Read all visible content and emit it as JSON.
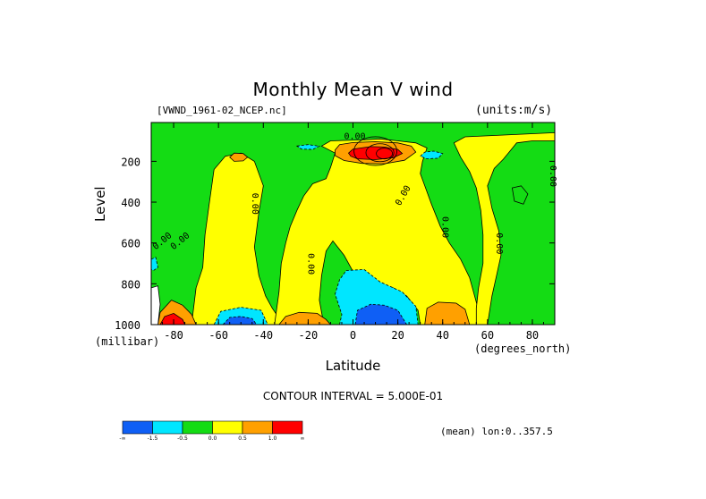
{
  "chart_data": {
    "type": "heatmap",
    "title": "Monthly Mean V wind",
    "dataset_label": "[VWND_1961-02_NCEP.nc]",
    "units_label": "(units:m/s)",
    "ylabel": "Level",
    "y_unit_label": "(millibar)",
    "xlabel": "Latitude",
    "x_unit_label": "(degrees_north)",
    "contour_interval_label": "CONTOUR INTERVAL = 5.000E-01",
    "mean_label": "(mean) lon:0..357.5",
    "xlim": [
      -90,
      90
    ],
    "ylim": [
      1000,
      10
    ],
    "x_ticks": [
      -80,
      -60,
      -40,
      -20,
      0,
      20,
      40,
      60,
      80
    ],
    "x_tick_labels": [
      "-80",
      "-60",
      "-40",
      "-20",
      "0",
      "20",
      "40",
      "60",
      "80"
    ],
    "y_ticks": [
      200,
      400,
      600,
      800,
      1000
    ],
    "y_tick_labels": [
      "200",
      "400",
      "600",
      "800",
      "1000"
    ],
    "colorbar": {
      "colors": [
        "#0f5ff5",
        "#00e6ff",
        "#14dc14",
        "#ffff00",
        "#ffa000",
        "#ff0000"
      ],
      "labels": [
        "-∞",
        "-1.5",
        "-0.5",
        "0.0",
        "0.5",
        "1.0",
        "∞"
      ]
    },
    "contour_labels": [
      "0.00",
      "0.00",
      "0.00",
      "0.00",
      "0.00",
      "0.00",
      "0.00",
      "0.00",
      "0.00"
    ],
    "regions": [
      {
        "name": "background",
        "level": 0.0,
        "polygon": [
          [
            -90,
            1000
          ],
          [
            90,
            1000
          ],
          [
            90,
            10
          ],
          [
            -90,
            10
          ]
        ]
      },
      {
        "name": "sh-mid-yellow",
        "level": 0.25,
        "polygon": [
          [
            -72,
            1000
          ],
          [
            -70,
            820
          ],
          [
            -67,
            720
          ],
          [
            -66,
            560
          ],
          [
            -64,
            400
          ],
          [
            -62,
            240
          ],
          [
            -57,
            175
          ],
          [
            -50,
            160
          ],
          [
            -44,
            200
          ],
          [
            -40,
            320
          ],
          [
            -42,
            450
          ],
          [
            -44,
            620
          ],
          [
            -42,
            760
          ],
          [
            -39,
            860
          ],
          [
            -36,
            920
          ],
          [
            -31,
            1000
          ]
        ]
      },
      {
        "name": "sh-mid-orange",
        "level": 0.75,
        "polygon": [
          [
            -55,
            180
          ],
          [
            -53,
            160
          ],
          [
            -49,
            162
          ],
          [
            -47,
            180
          ],
          [
            -49,
            198
          ],
          [
            -53,
            200
          ]
        ]
      },
      {
        "name": "sh-polar-orange",
        "level": 0.75,
        "polygon": [
          [
            -87,
            1000
          ],
          [
            -86,
            940
          ],
          [
            -81,
            880
          ],
          [
            -76,
            905
          ],
          [
            -72,
            950
          ],
          [
            -70,
            1000
          ]
        ]
      },
      {
        "name": "sh-polar-red",
        "level": 1.25,
        "polygon": [
          [
            -86,
            1000
          ],
          [
            -84,
            960
          ],
          [
            -80,
            945
          ],
          [
            -76,
            975
          ],
          [
            -75,
            1000
          ]
        ]
      },
      {
        "name": "sh-polar-white",
        "level": null,
        "polygon": [
          [
            -90,
            1000
          ],
          [
            -90,
            820
          ],
          [
            -87,
            810
          ],
          [
            -86,
            900
          ],
          [
            -87,
            1000
          ]
        ]
      },
      {
        "name": "sh-polar-cyan",
        "level": -1.0,
        "polygon": [
          [
            -90,
            680
          ],
          [
            -88,
            670
          ],
          [
            -87,
            720
          ],
          [
            -89,
            735
          ],
          [
            -90,
            730
          ]
        ]
      },
      {
        "name": "sh-upper-cyan",
        "level": -1.0,
        "polygon": [
          [
            -25,
            125
          ],
          [
            -20,
            118
          ],
          [
            -15,
            126
          ],
          [
            -18,
            142
          ],
          [
            -23,
            140
          ]
        ]
      },
      {
        "name": "subtropical-yellow",
        "level": 0.25,
        "polygon": [
          [
            -35,
            1000
          ],
          [
            -33,
            840
          ],
          [
            -32,
            700
          ],
          [
            -30,
            600
          ],
          [
            -28,
            520
          ],
          [
            -25,
            440
          ],
          [
            -22,
            370
          ],
          [
            -18,
            310
          ],
          [
            -12,
            285
          ],
          [
            -10,
            230
          ],
          [
            -8,
            160
          ],
          [
            -14,
            125
          ],
          [
            -10,
            100
          ],
          [
            5,
            95
          ],
          [
            12,
            90
          ],
          [
            20,
            100
          ],
          [
            28,
            110
          ],
          [
            33,
            135
          ],
          [
            31,
            200
          ],
          [
            30,
            260
          ],
          [
            32,
            320
          ],
          [
            35,
            410
          ],
          [
            39,
            520
          ],
          [
            43,
            600
          ],
          [
            48,
            680
          ],
          [
            52,
            770
          ],
          [
            54,
            850
          ],
          [
            56,
            930
          ],
          [
            58,
            1000
          ],
          [
            30,
            1000
          ],
          [
            29,
            930
          ],
          [
            24,
            860
          ],
          [
            18,
            820
          ],
          [
            8,
            800
          ],
          [
            0,
            740
          ],
          [
            -4,
            660
          ],
          [
            -9,
            590
          ],
          [
            -12,
            640
          ],
          [
            -14,
            760
          ],
          [
            -15,
            880
          ],
          [
            -13,
            1000
          ]
        ]
      },
      {
        "name": "tropical-upper-orange",
        "level": 0.75,
        "polygon": [
          [
            -8,
            145
          ],
          [
            -6,
            118
          ],
          [
            0,
            108
          ],
          [
            10,
            104
          ],
          [
            20,
            110
          ],
          [
            26,
            125
          ],
          [
            28,
            155
          ],
          [
            23,
            195
          ],
          [
            14,
            212
          ],
          [
            4,
            210
          ],
          [
            -4,
            196
          ],
          [
            -8,
            172
          ]
        ]
      },
      {
        "name": "tropical-upper-red",
        "level": 1.25,
        "polygon": [
          [
            -2,
            160
          ],
          [
            0,
            140
          ],
          [
            8,
            128
          ],
          [
            14,
            130
          ],
          [
            20,
            142
          ],
          [
            22,
            162
          ],
          [
            18,
            182
          ],
          [
            10,
            192
          ],
          [
            2,
            188
          ],
          [
            -1,
            175
          ]
        ]
      },
      {
        "name": "tropical-cyan",
        "level": -1.0,
        "polygon": [
          [
            -6,
            1000
          ],
          [
            -5,
            950
          ],
          [
            -8,
            850
          ],
          [
            -6,
            780
          ],
          [
            -3,
            735
          ],
          [
            5,
            730
          ],
          [
            12,
            790
          ],
          [
            22,
            840
          ],
          [
            28,
            910
          ],
          [
            29,
            1000
          ]
        ]
      },
      {
        "name": "tropical-blue",
        "level": -1.75,
        "polygon": [
          [
            1,
            1000
          ],
          [
            2,
            930
          ],
          [
            8,
            900
          ],
          [
            14,
            905
          ],
          [
            20,
            930
          ],
          [
            24,
            1000
          ]
        ]
      },
      {
        "name": "nh-upper-cyan",
        "level": -1.0,
        "polygon": [
          [
            30,
            175
          ],
          [
            32,
            155
          ],
          [
            36,
            150
          ],
          [
            40,
            162
          ],
          [
            38,
            185
          ],
          [
            33,
            188
          ]
        ]
      },
      {
        "name": "nh-surface-orange",
        "level": 0.75,
        "polygon": [
          [
            32,
            1000
          ],
          [
            33,
            920
          ],
          [
            38,
            890
          ],
          [
            46,
            895
          ],
          [
            50,
            925
          ],
          [
            52,
            1000
          ]
        ]
      },
      {
        "name": "sh-surface-cyan",
        "level": -1.0,
        "polygon": [
          [
            -62,
            1000
          ],
          [
            -59,
            935
          ],
          [
            -50,
            915
          ],
          [
            -41,
            930
          ],
          [
            -38,
            1000
          ]
        ]
      },
      {
        "name": "sh-surface-blue",
        "level": -1.75,
        "polygon": [
          [
            -58,
            1000
          ],
          [
            -55,
            965
          ],
          [
            -50,
            960
          ],
          [
            -45,
            970
          ],
          [
            -43,
            1000
          ]
        ]
      },
      {
        "name": "sh-subtrop-orange",
        "level": 0.75,
        "polygon": [
          [
            -33,
            1000
          ],
          [
            -30,
            960
          ],
          [
            -24,
            940
          ],
          [
            -16,
            945
          ],
          [
            -12,
            975
          ],
          [
            -10,
            1000
          ]
        ]
      },
      {
        "name": "nh-high-yellow",
        "level": 0.25,
        "polygon": [
          [
            60,
            1000
          ],
          [
            62,
            860
          ],
          [
            64,
            760
          ],
          [
            66,
            660
          ],
          [
            65,
            540
          ],
          [
            62,
            430
          ],
          [
            60,
            320
          ],
          [
            63,
            235
          ],
          [
            67,
            190
          ],
          [
            70,
            150
          ],
          [
            73,
            110
          ],
          [
            80,
            100
          ],
          [
            90,
            100
          ],
          [
            90,
            60
          ],
          [
            50,
            80
          ],
          [
            45,
            110
          ],
          [
            48,
            180
          ],
          [
            52,
            250
          ],
          [
            55,
            330
          ],
          [
            57,
            440
          ],
          [
            58,
            560
          ],
          [
            58,
            700
          ],
          [
            56,
            820
          ],
          [
            55,
            920
          ],
          [
            55,
            1000
          ]
        ]
      },
      {
        "name": "nh-polar-green-island",
        "level": 0.0,
        "polygon": [
          [
            71,
            330
          ],
          [
            75,
            320
          ],
          [
            78,
            360
          ],
          [
            76,
            410
          ],
          [
            72,
            395
          ]
        ]
      }
    ]
  }
}
